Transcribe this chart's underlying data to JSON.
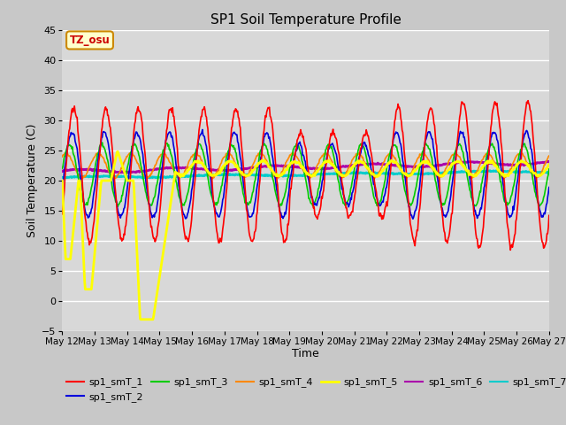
{
  "title": "SP1 Soil Temperature Profile",
  "xlabel": "Time",
  "ylabel": "Soil Temperature (C)",
  "ylim": [
    -5,
    45
  ],
  "background_color": "#d8d8d8",
  "grid_color": "#ffffff",
  "annotation_box": {
    "text": "TZ_osu",
    "facecolor": "#ffffcc",
    "edgecolor": "#cc8800",
    "textcolor": "#cc0000"
  },
  "series": {
    "sp1_smT_1": {
      "color": "#ff0000",
      "lw": 1.2
    },
    "sp1_smT_2": {
      "color": "#0000dd",
      "lw": 1.2
    },
    "sp1_smT_3": {
      "color": "#00cc00",
      "lw": 1.2
    },
    "sp1_smT_4": {
      "color": "#ff8800",
      "lw": 1.2
    },
    "sp1_smT_5": {
      "color": "#ffff00",
      "lw": 2.0
    },
    "sp1_smT_6": {
      "color": "#aa00aa",
      "lw": 2.0
    },
    "sp1_smT_7": {
      "color": "#00cccc",
      "lw": 2.0
    }
  },
  "tick_labels": [
    "May 12",
    "May 13",
    "May 14",
    "May 15",
    "May 16",
    "May 17",
    "May 18",
    "May 19",
    "May 20",
    "May 21",
    "May 22",
    "May 23",
    "May 24",
    "May 25",
    "May 26",
    "May 27"
  ],
  "yticks": [
    -5,
    0,
    5,
    10,
    15,
    20,
    25,
    30,
    35,
    40,
    45
  ],
  "n_days": 15,
  "pts_per_day": 48
}
